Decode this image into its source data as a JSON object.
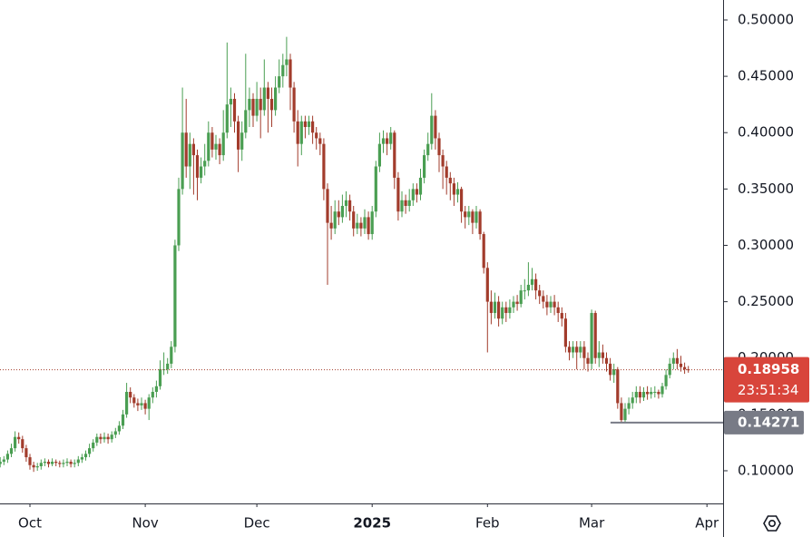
{
  "chart_data": {
    "type": "candlestick",
    "up_color": "#4a9e52",
    "down_color": "#a23c2c",
    "open": [
      0.106,
      0.108,
      0.11,
      0.115,
      0.12,
      0.13,
      0.128,
      0.12,
      0.112,
      0.105,
      0.103,
      0.104,
      0.107,
      0.108,
      0.106,
      0.108,
      0.107,
      0.106,
      0.107,
      0.108,
      0.106,
      0.107,
      0.11,
      0.112,
      0.115,
      0.12,
      0.125,
      0.13,
      0.128,
      0.13,
      0.128,
      0.132,
      0.135,
      0.14,
      0.15,
      0.17,
      0.165,
      0.16,
      0.158,
      0.16,
      0.155,
      0.165,
      0.17,
      0.175,
      0.19,
      0.19,
      0.195,
      0.21,
      0.3,
      0.35,
      0.4,
      0.37,
      0.39,
      0.38,
      0.36,
      0.37,
      0.375,
      0.4,
      0.385,
      0.39,
      0.38,
      0.4,
      0.425,
      0.43,
      0.41,
      0.385,
      0.4,
      0.42,
      0.43,
      0.415,
      0.43,
      0.42,
      0.44,
      0.43,
      0.42,
      0.44,
      0.45,
      0.46,
      0.465,
      0.44,
      0.41,
      0.39,
      0.41,
      0.405,
      0.41,
      0.4,
      0.395,
      0.39,
      0.35,
      0.32,
      0.315,
      0.33,
      0.325,
      0.335,
      0.34,
      0.33,
      0.315,
      0.32,
      0.315,
      0.325,
      0.31,
      0.33,
      0.37,
      0.39,
      0.395,
      0.39,
      0.4,
      0.36,
      0.33,
      0.34,
      0.335,
      0.34,
      0.35,
      0.345,
      0.36,
      0.38,
      0.39,
      0.415,
      0.395,
      0.38,
      0.37,
      0.36,
      0.355,
      0.345,
      0.35,
      0.33,
      0.325,
      0.33,
      0.32,
      0.33,
      0.31,
      0.28,
      0.25,
      0.24,
      0.25,
      0.235,
      0.245,
      0.24,
      0.245,
      0.25,
      0.248,
      0.26,
      0.26,
      0.265,
      0.27,
      0.26,
      0.255,
      0.25,
      0.245,
      0.25,
      0.245,
      0.24,
      0.235,
      0.21,
      0.205,
      0.21,
      0.205,
      0.21,
      0.2,
      0.195,
      0.24,
      0.2,
      0.205,
      0.2,
      0.195,
      0.185,
      0.19,
      0.16,
      0.145,
      0.155,
      0.16,
      0.165,
      0.17,
      0.165,
      0.17,
      0.168,
      0.17,
      0.17,
      0.168,
      0.175,
      0.185,
      0.195,
      0.2,
      0.195,
      0.192,
      0.19
    ],
    "high": [
      0.112,
      0.113,
      0.118,
      0.124,
      0.135,
      0.134,
      0.131,
      0.123,
      0.115,
      0.108,
      0.107,
      0.11,
      0.111,
      0.11,
      0.111,
      0.11,
      0.109,
      0.11,
      0.111,
      0.11,
      0.11,
      0.113,
      0.115,
      0.118,
      0.124,
      0.128,
      0.133,
      0.133,
      0.134,
      0.133,
      0.135,
      0.138,
      0.144,
      0.154,
      0.178,
      0.174,
      0.168,
      0.164,
      0.165,
      0.163,
      0.168,
      0.174,
      0.18,
      0.198,
      0.205,
      0.2,
      0.215,
      0.305,
      0.36,
      0.44,
      0.43,
      0.4,
      0.395,
      0.385,
      0.378,
      0.39,
      0.41,
      0.405,
      0.398,
      0.395,
      0.42,
      0.48,
      0.44,
      0.435,
      0.415,
      0.41,
      0.47,
      0.44,
      0.435,
      0.445,
      0.44,
      0.465,
      0.445,
      0.44,
      0.45,
      0.465,
      0.47,
      0.485,
      0.47,
      0.445,
      0.42,
      0.415,
      0.415,
      0.415,
      0.415,
      0.405,
      0.4,
      0.395,
      0.355,
      0.335,
      0.34,
      0.34,
      0.345,
      0.348,
      0.345,
      0.335,
      0.328,
      0.325,
      0.332,
      0.33,
      0.335,
      0.375,
      0.4,
      0.402,
      0.4,
      0.405,
      0.402,
      0.365,
      0.348,
      0.345,
      0.35,
      0.355,
      0.355,
      0.368,
      0.385,
      0.4,
      0.435,
      0.42,
      0.4,
      0.385,
      0.375,
      0.365,
      0.36,
      0.356,
      0.352,
      0.335,
      0.335,
      0.332,
      0.335,
      0.332,
      0.312,
      0.285,
      0.26,
      0.258,
      0.255,
      0.25,
      0.25,
      0.252,
      0.255,
      0.256,
      0.265,
      0.27,
      0.285,
      0.28,
      0.275,
      0.265,
      0.26,
      0.256,
      0.255,
      0.256,
      0.25,
      0.245,
      0.24,
      0.215,
      0.215,
      0.215,
      0.215,
      0.215,
      0.205,
      0.243,
      0.242,
      0.215,
      0.212,
      0.205,
      0.2,
      0.195,
      0.192,
      0.165,
      0.16,
      0.165,
      0.17,
      0.175,
      0.175,
      0.174,
      0.175,
      0.174,
      0.175,
      0.172,
      0.178,
      0.19,
      0.2,
      0.205,
      0.208,
      0.202,
      0.196,
      0.193
    ],
    "low": [
      0.103,
      0.105,
      0.107,
      0.112,
      0.117,
      0.124,
      0.116,
      0.108,
      0.101,
      0.099,
      0.1,
      0.101,
      0.104,
      0.103,
      0.104,
      0.104,
      0.103,
      0.103,
      0.104,
      0.103,
      0.103,
      0.104,
      0.107,
      0.109,
      0.112,
      0.117,
      0.122,
      0.124,
      0.125,
      0.124,
      0.125,
      0.129,
      0.132,
      0.137,
      0.147,
      0.16,
      0.156,
      0.153,
      0.154,
      0.15,
      0.145,
      0.16,
      0.165,
      0.172,
      0.185,
      0.186,
      0.191,
      0.205,
      0.295,
      0.345,
      0.36,
      0.35,
      0.345,
      0.34,
      0.355,
      0.362,
      0.37,
      0.378,
      0.376,
      0.372,
      0.375,
      0.395,
      0.405,
      0.4,
      0.365,
      0.375,
      0.395,
      0.405,
      0.405,
      0.41,
      0.395,
      0.415,
      0.4,
      0.405,
      0.415,
      0.435,
      0.44,
      0.45,
      0.42,
      0.4,
      0.37,
      0.38,
      0.395,
      0.398,
      0.39,
      0.385,
      0.38,
      0.34,
      0.265,
      0.305,
      0.31,
      0.318,
      0.32,
      0.325,
      0.322,
      0.308,
      0.31,
      0.308,
      0.31,
      0.305,
      0.305,
      0.325,
      0.365,
      0.382,
      0.38,
      0.385,
      0.35,
      0.322,
      0.325,
      0.328,
      0.33,
      0.335,
      0.338,
      0.34,
      0.355,
      0.375,
      0.385,
      0.385,
      0.365,
      0.35,
      0.345,
      0.34,
      0.335,
      0.338,
      0.32,
      0.315,
      0.318,
      0.31,
      0.315,
      0.305,
      0.275,
      0.205,
      0.23,
      0.235,
      0.228,
      0.23,
      0.232,
      0.235,
      0.24,
      0.242,
      0.245,
      0.252,
      0.255,
      0.26,
      0.252,
      0.248,
      0.244,
      0.238,
      0.24,
      0.238,
      0.232,
      0.228,
      0.205,
      0.198,
      0.2,
      0.19,
      0.2,
      0.19,
      0.188,
      0.19,
      0.195,
      0.192,
      0.195,
      0.188,
      0.18,
      0.178,
      0.155,
      0.143,
      0.143,
      0.15,
      0.155,
      0.16,
      0.16,
      0.162,
      0.163,
      0.164,
      0.165,
      0.164,
      0.165,
      0.172,
      0.182,
      0.19,
      0.19,
      0.188,
      0.186,
      0.187
    ],
    "close": [
      0.108,
      0.11,
      0.115,
      0.12,
      0.13,
      0.128,
      0.12,
      0.112,
      0.105,
      0.103,
      0.104,
      0.107,
      0.108,
      0.106,
      0.108,
      0.107,
      0.106,
      0.107,
      0.108,
      0.106,
      0.107,
      0.11,
      0.112,
      0.115,
      0.12,
      0.125,
      0.13,
      0.128,
      0.13,
      0.128,
      0.132,
      0.135,
      0.14,
      0.15,
      0.17,
      0.165,
      0.16,
      0.158,
      0.16,
      0.155,
      0.165,
      0.17,
      0.175,
      0.19,
      0.19,
      0.195,
      0.21,
      0.3,
      0.35,
      0.4,
      0.37,
      0.39,
      0.38,
      0.36,
      0.37,
      0.375,
      0.4,
      0.385,
      0.39,
      0.38,
      0.4,
      0.425,
      0.43,
      0.41,
      0.385,
      0.4,
      0.42,
      0.43,
      0.415,
      0.43,
      0.42,
      0.44,
      0.43,
      0.42,
      0.44,
      0.45,
      0.46,
      0.465,
      0.44,
      0.41,
      0.39,
      0.41,
      0.405,
      0.41,
      0.4,
      0.395,
      0.39,
      0.35,
      0.32,
      0.315,
      0.33,
      0.325,
      0.335,
      0.34,
      0.33,
      0.315,
      0.32,
      0.315,
      0.325,
      0.31,
      0.33,
      0.37,
      0.39,
      0.395,
      0.39,
      0.4,
      0.36,
      0.33,
      0.34,
      0.335,
      0.34,
      0.35,
      0.345,
      0.36,
      0.38,
      0.39,
      0.415,
      0.395,
      0.38,
      0.37,
      0.36,
      0.355,
      0.345,
      0.35,
      0.33,
      0.325,
      0.33,
      0.32,
      0.33,
      0.31,
      0.28,
      0.25,
      0.24,
      0.25,
      0.235,
      0.245,
      0.24,
      0.245,
      0.25,
      0.248,
      0.26,
      0.26,
      0.265,
      0.27,
      0.26,
      0.255,
      0.25,
      0.245,
      0.25,
      0.245,
      0.24,
      0.235,
      0.21,
      0.205,
      0.21,
      0.205,
      0.21,
      0.2,
      0.195,
      0.24,
      0.2,
      0.205,
      0.2,
      0.195,
      0.185,
      0.19,
      0.16,
      0.145,
      0.155,
      0.16,
      0.165,
      0.17,
      0.165,
      0.17,
      0.168,
      0.17,
      0.17,
      0.168,
      0.175,
      0.185,
      0.195,
      0.2,
      0.195,
      0.192,
      0.19,
      0.18958
    ],
    "ylim": [
      0.071,
      0.5177
    ],
    "yticks": [
      {
        "value": 0.1,
        "label": "0.10000"
      },
      {
        "value": 0.15,
        "label": "0.15000"
      },
      {
        "value": 0.2,
        "label": "0.20000"
      },
      {
        "value": 0.25,
        "label": "0.25000"
      },
      {
        "value": 0.3,
        "label": "0.30000"
      },
      {
        "value": 0.35,
        "label": "0.35000"
      },
      {
        "value": 0.4,
        "label": "0.40000"
      },
      {
        "value": 0.45,
        "label": "0.45000"
      },
      {
        "value": 0.5,
        "label": "0.50000"
      }
    ],
    "xticks": [
      {
        "value": 8,
        "label": "Oct"
      },
      {
        "value": 39,
        "label": "Nov"
      },
      {
        "value": 69,
        "label": "Dec"
      },
      {
        "value": 100,
        "label": "2025"
      },
      {
        "value": 131,
        "label": "Feb"
      },
      {
        "value": 159,
        "label": "Mar"
      },
      {
        "value": 190,
        "label": "Apr"
      }
    ],
    "last_price": 0.18958,
    "countdown": "23:51:34",
    "low_line": 0.14271,
    "low_line_start": 167
  }
}
